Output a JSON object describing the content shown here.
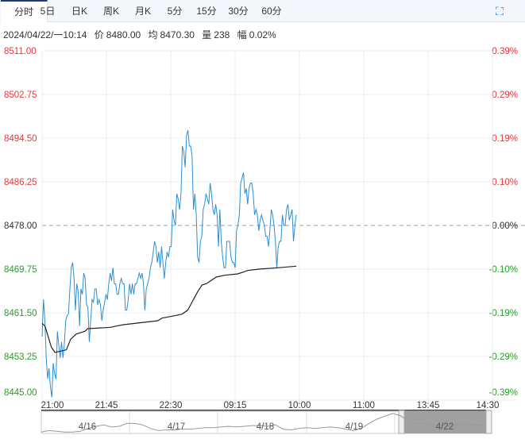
{
  "tabs": [
    "分时",
    "5日",
    "日K",
    "周K",
    "月K",
    "5分",
    "15分",
    "30分",
    "60分"
  ],
  "active_tab": 0,
  "info": {
    "datetime": "2024/04/22/一10:14",
    "price_label": "价",
    "price": "8480.00",
    "avg_label": "均",
    "avg": "8470.30",
    "vol_label": "量",
    "vol": "238",
    "chg_label": "幅",
    "chg": "0.02%"
  },
  "colors": {
    "up": "#e4393c",
    "down": "#2a9c2a",
    "price_line": "#2a8fd4",
    "avg_line": "#222222",
    "grid": "#e8ecf0"
  },
  "chart_data": {
    "type": "line",
    "base": 8478,
    "ylim": [
      8445,
      8511
    ],
    "y_ticks": [
      "8511.00",
      "8502.75",
      "8494.50",
      "8486.25",
      "8478.00",
      "8469.75",
      "8461.50",
      "8453.25",
      "8445.00"
    ],
    "pct_ticks": [
      "0.39%",
      "0.29%",
      "0.19%",
      "0.10%",
      "0.00%",
      "-0.10%",
      "-0.19%",
      "-0.29%",
      "-0.39%"
    ],
    "x_ticks": [
      "21:00",
      "21:45",
      "22:30",
      "09:15",
      "10:00",
      "11:00",
      "13:45",
      "14:30"
    ],
    "x_range_minutes": 315,
    "series": [
      {
        "name": "price",
        "values": [
          8457,
          8464,
          8460,
          8453,
          8449,
          8451,
          8447.5,
          8445.5,
          8452,
          8450,
          8449,
          8458,
          8455.5,
          8453,
          8456,
          8453,
          8455.5,
          8460,
          8461,
          8461.25,
          8466,
          8470,
          8471,
          8468,
          8462,
          8467,
          8465.5,
          8459,
          8466,
          8465,
          8469,
          8468,
          8463,
          8462.5,
          8456,
          8460,
          8464,
          8463.5,
          8466,
          8466,
          8463,
          8464,
          8463,
          8460,
          8462,
          8463.5,
          8465,
          8464,
          8467,
          8469,
          8467.5,
          8470,
          8467,
          8467,
          8465,
          8465,
          8467,
          8468,
          8467,
          8467,
          8462,
          8462,
          8464,
          8467,
          8465,
          8467,
          8465,
          8467,
          8467,
          8468,
          8469,
          8468,
          8469,
          8467,
          8462,
          8466,
          8467,
          8468,
          8470,
          8471,
          8473,
          8475,
          8474,
          8471,
          8473,
          8470,
          8474,
          8471,
          8468,
          8471,
          8473,
          8472,
          8474,
          8474,
          8481,
          8479,
          8478,
          8484,
          8483,
          8481,
          8484,
          8493,
          8492,
          8489,
          8495,
          8496,
          8493,
          8493,
          8491,
          8481,
          8484,
          8480,
          8472,
          8471,
          8475,
          8476,
          8481,
          8482,
          8484,
          8483,
          8482,
          8486,
          8484,
          8481,
          8480,
          8482,
          8480,
          8474,
          8481,
          8475,
          8472,
          8470,
          8470,
          8475,
          8475,
          8475,
          8472,
          8471,
          8471,
          8470,
          8477,
          8478,
          8480,
          8486,
          8487,
          8488,
          8484,
          8485,
          8482,
          8485,
          8486,
          8486,
          8484,
          8480,
          8481,
          8480,
          8477,
          8479,
          8480,
          8479,
          8478,
          8476,
          8476,
          8474,
          8477,
          8481,
          8480,
          8478,
          8475,
          8470,
          8474,
          8475,
          8475,
          8480,
          8478,
          8478,
          8481,
          8482,
          8479,
          8480,
          8481,
          8475,
          8478,
          8480
        ]
      },
      {
        "name": "avg",
        "points": [
          [
            0,
            8459.5
          ],
          [
            2,
            8459
          ],
          [
            6.5,
            8455
          ],
          [
            9,
            8454
          ],
          [
            17,
            8454.5
          ],
          [
            20,
            8456.5
          ],
          [
            24,
            8457.5
          ],
          [
            30,
            8458
          ],
          [
            32,
            8458.5
          ],
          [
            48,
            8458.75
          ],
          [
            52,
            8459
          ],
          [
            57,
            8459.25
          ],
          [
            81,
            8460
          ],
          [
            84,
            8460.5
          ],
          [
            94,
            8461
          ],
          [
            98,
            8461.25
          ],
          [
            102,
            8462
          ],
          [
            106,
            8464
          ],
          [
            109,
            8465.5
          ],
          [
            112,
            8466.75
          ],
          [
            115,
            8467
          ],
          [
            122,
            8468.25
          ],
          [
            128,
            8468.6
          ],
          [
            137,
            8468.85
          ],
          [
            141,
            8469.2
          ],
          [
            144,
            8469.5
          ],
          [
            152,
            8469.75
          ],
          [
            165,
            8470
          ],
          [
            178,
            8470.3
          ]
        ]
      }
    ]
  },
  "navigator": {
    "labels": [
      "4/16",
      "4/17",
      "4/18",
      "4/19",
      "4/22"
    ],
    "values": [
      40,
      42,
      41,
      40,
      40,
      41,
      45,
      48,
      50,
      47,
      48,
      52,
      52,
      50,
      45,
      42,
      43,
      43,
      44,
      44,
      45,
      46,
      46,
      47,
      48,
      47,
      48,
      49,
      49,
      48,
      50,
      44,
      43,
      45,
      46,
      45,
      46,
      47,
      46,
      44,
      42,
      45,
      52,
      58,
      62,
      66,
      63,
      56,
      52,
      52,
      50,
      50,
      49,
      50,
      51,
      50,
      50,
      49
    ]
  }
}
